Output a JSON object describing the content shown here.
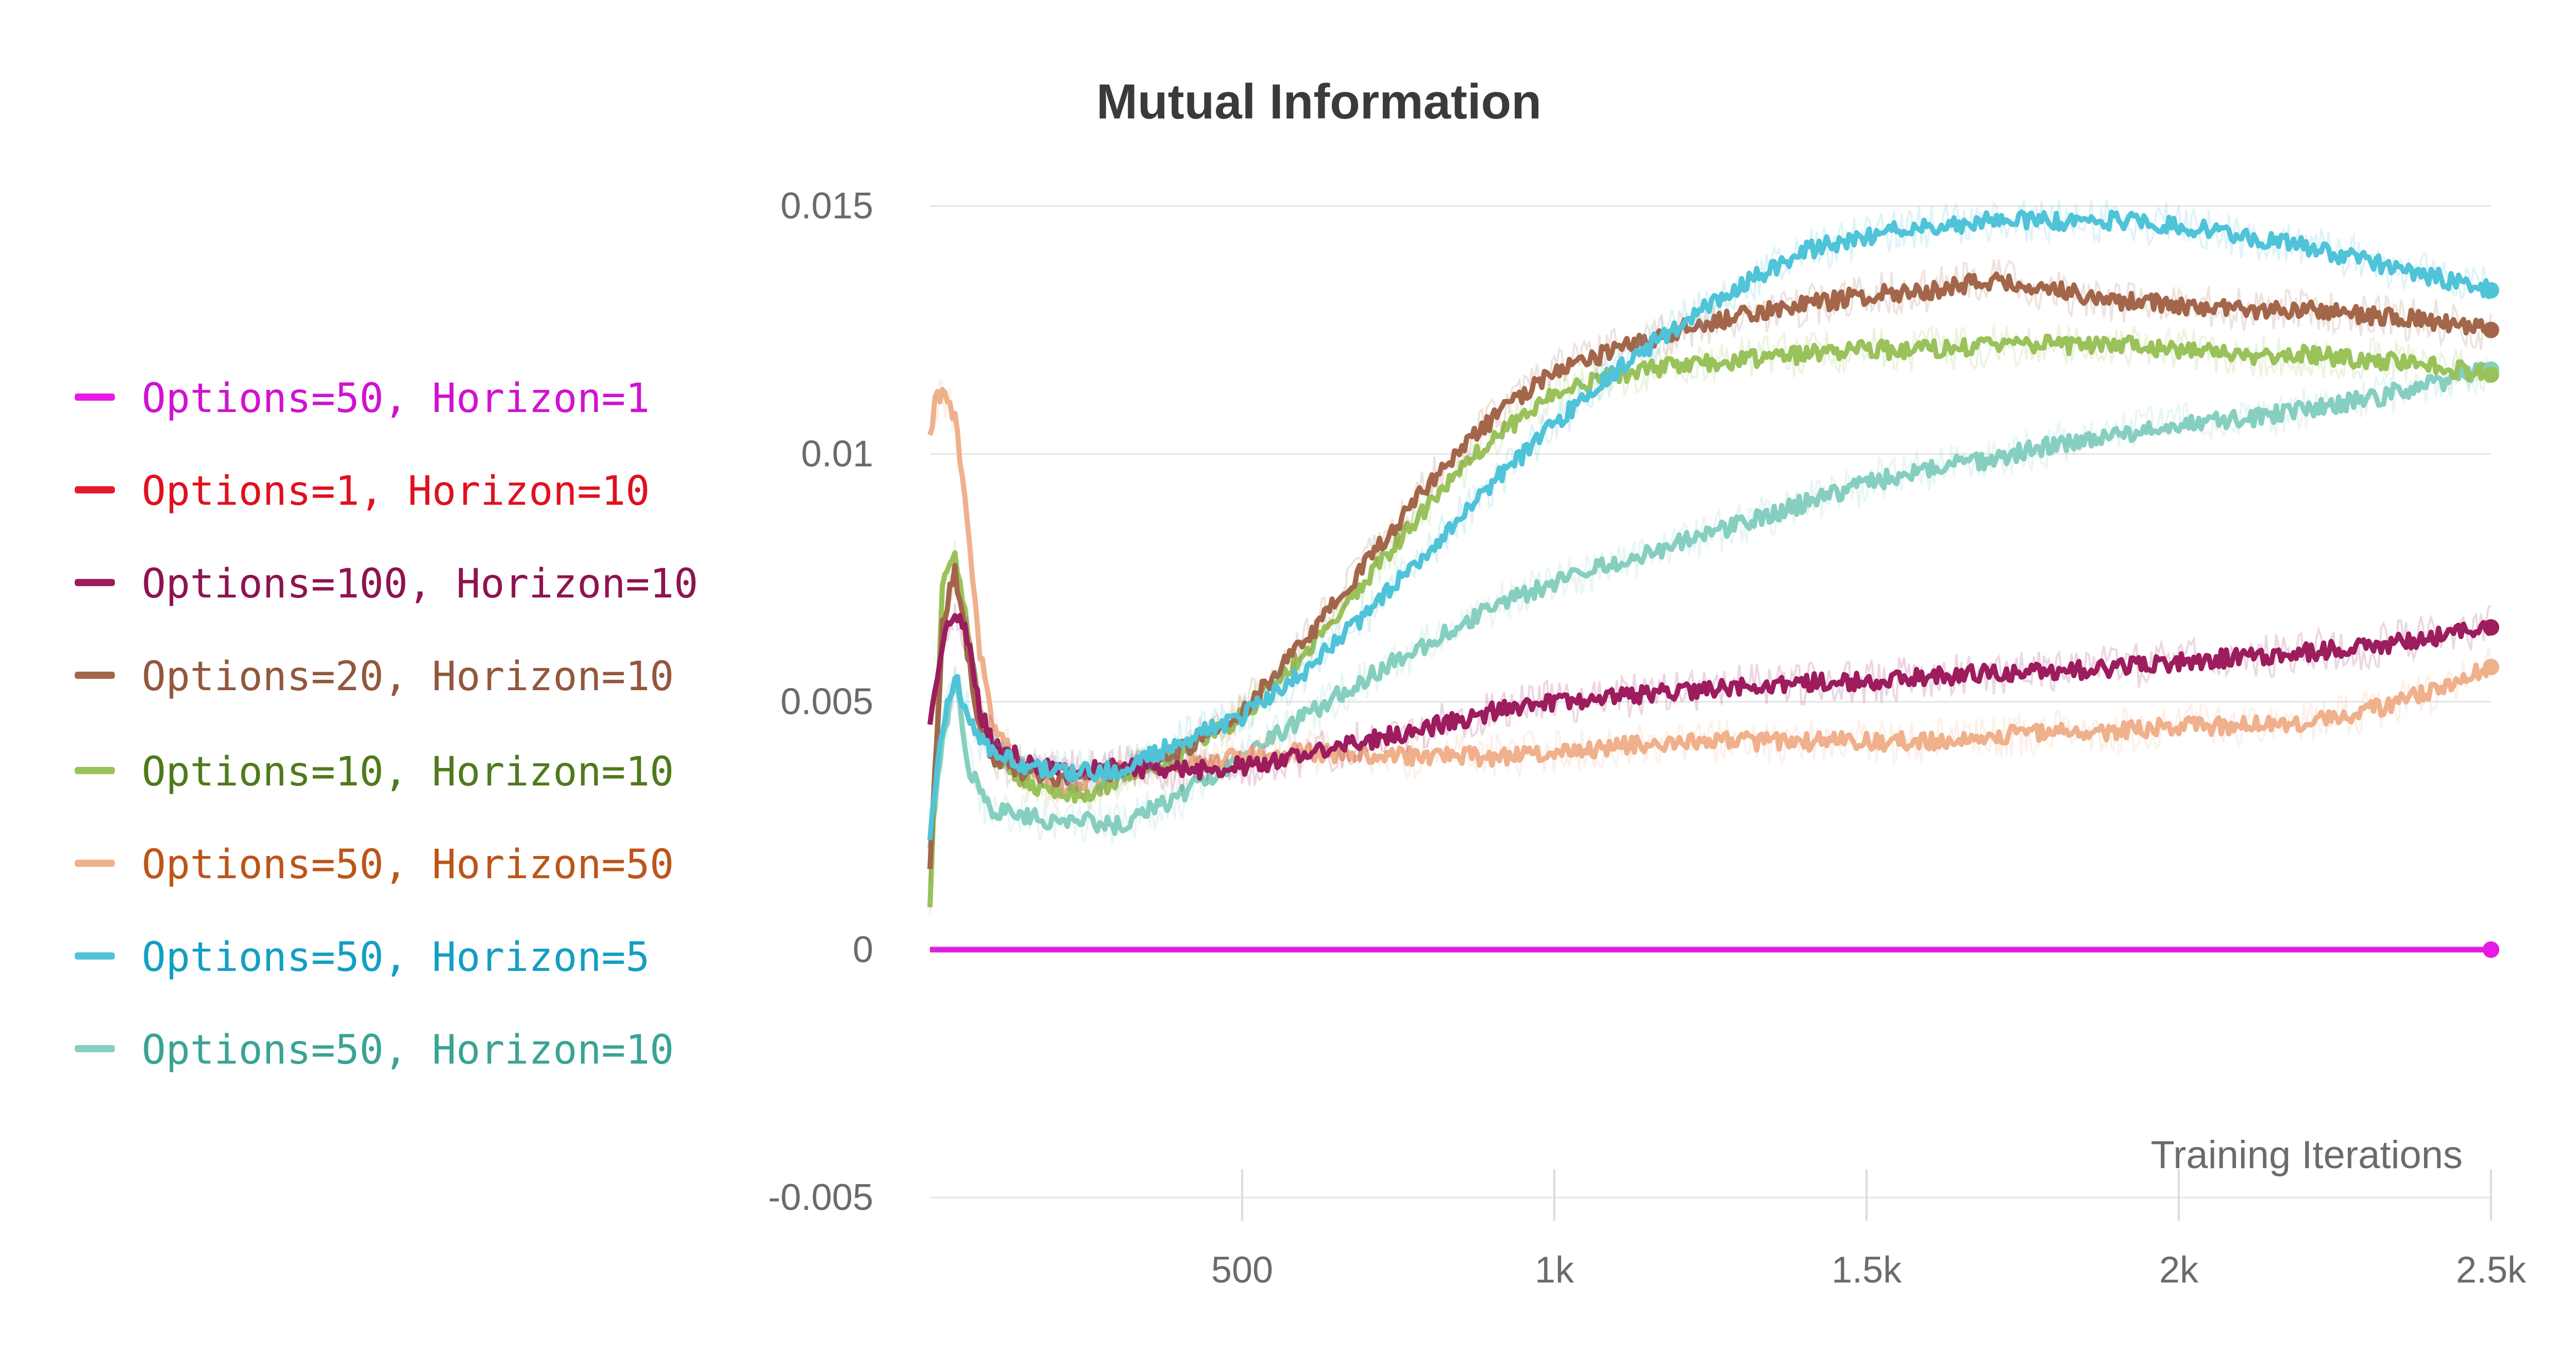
{
  "chart_data": {
    "type": "line",
    "title": "Mutual Information",
    "xlabel": "Training Iterations",
    "ylabel": "",
    "xlim": [
      0,
      2500
    ],
    "ylim": [
      -0.005,
      0.015
    ],
    "x_ticks": [
      500,
      1000,
      1500,
      2000,
      2500
    ],
    "x_tick_labels": [
      "500",
      "1k",
      "1.5k",
      "2k",
      "2.5k"
    ],
    "y_ticks": [
      -0.005,
      0,
      0.005,
      0.01,
      0.015
    ],
    "y_tick_labels": [
      "-0.005",
      "0",
      "0.005",
      "0.01",
      "0.015"
    ],
    "grid": true,
    "legend_position": "left",
    "series": [
      {
        "name": "Options=50, Horizon=1",
        "color": "#e619e6",
        "x": [
          0,
          2500
        ],
        "y": [
          0,
          0
        ]
      },
      {
        "name": "Options=1, Horizon=10",
        "color": "#e6192e",
        "x": [
          0,
          2500
        ],
        "y": [
          0,
          0
        ]
      },
      {
        "name": "Options=100, Horizon=10",
        "color": "#9c1c5e",
        "x": [
          0,
          20,
          40,
          60,
          80,
          100,
          150,
          200,
          250,
          300,
          400,
          500,
          600,
          700,
          800,
          900,
          1000,
          1100,
          1200,
          1300,
          1400,
          1500,
          1600,
          1700,
          1800,
          1900,
          2000,
          2100,
          2200,
          2300,
          2400,
          2500
        ],
        "y": [
          0.0047,
          0.0061,
          0.0069,
          0.0063,
          0.0048,
          0.0042,
          0.0038,
          0.0036,
          0.0036,
          0.0037,
          0.0036,
          0.0037,
          0.0039,
          0.0042,
          0.0045,
          0.0048,
          0.005,
          0.0051,
          0.0052,
          0.0053,
          0.0054,
          0.0054,
          0.0055,
          0.0056,
          0.0056,
          0.0057,
          0.0058,
          0.0059,
          0.006,
          0.0061,
          0.0063,
          0.0065
        ]
      },
      {
        "name": "Options=20, Horizon=10",
        "color": "#a3664a",
        "x": [
          0,
          20,
          40,
          60,
          80,
          100,
          150,
          200,
          250,
          300,
          400,
          500,
          600,
          700,
          800,
          900,
          1000,
          1100,
          1200,
          1300,
          1400,
          1500,
          1600,
          1700,
          1800,
          1900,
          2000,
          2100,
          2200,
          2300,
          2400,
          2500
        ],
        "y": [
          0.0015,
          0.0065,
          0.0077,
          0.006,
          0.0045,
          0.0039,
          0.0036,
          0.0035,
          0.0035,
          0.0036,
          0.004,
          0.0048,
          0.0062,
          0.0078,
          0.0094,
          0.0107,
          0.0117,
          0.0121,
          0.0125,
          0.0128,
          0.013,
          0.0132,
          0.0133,
          0.0135,
          0.0133,
          0.0131,
          0.013,
          0.0129,
          0.0129,
          0.0128,
          0.0127,
          0.0125
        ]
      },
      {
        "name": "Options=10, Horizon=10",
        "color": "#99c25a",
        "x": [
          0,
          20,
          40,
          60,
          80,
          100,
          150,
          200,
          250,
          300,
          400,
          500,
          600,
          700,
          800,
          900,
          1000,
          1100,
          1200,
          1300,
          1400,
          1500,
          1600,
          1700,
          1800,
          1900,
          2000,
          2100,
          2200,
          2300,
          2400,
          2500
        ],
        "y": [
          0.0008,
          0.0074,
          0.0081,
          0.0065,
          0.0047,
          0.004,
          0.0034,
          0.0032,
          0.0031,
          0.0034,
          0.0039,
          0.0047,
          0.006,
          0.0075,
          0.009,
          0.0103,
          0.0112,
          0.0116,
          0.0118,
          0.0119,
          0.012,
          0.0121,
          0.0121,
          0.0122,
          0.0122,
          0.0122,
          0.0121,
          0.012,
          0.012,
          0.0119,
          0.0118,
          0.0116
        ]
      },
      {
        "name": "Options=50, Horizon=50",
        "color": "#f0b08c",
        "x": [
          0,
          10,
          20,
          40,
          60,
          80,
          100,
          150,
          200,
          250,
          300,
          400,
          500,
          600,
          700,
          800,
          900,
          1000,
          1100,
          1200,
          1300,
          1400,
          1500,
          1600,
          1700,
          1800,
          1900,
          2000,
          2100,
          2200,
          2300,
          2400,
          2500
        ],
        "y": [
          0.0104,
          0.0111,
          0.0112,
          0.0107,
          0.0087,
          0.006,
          0.0045,
          0.0037,
          0.0033,
          0.0034,
          0.0036,
          0.0037,
          0.0039,
          0.004,
          0.0039,
          0.0039,
          0.0039,
          0.004,
          0.0041,
          0.0042,
          0.0042,
          0.0042,
          0.0042,
          0.0042,
          0.0043,
          0.0044,
          0.0044,
          0.0045,
          0.0045,
          0.0046,
          0.0048,
          0.0052,
          0.0057
        ]
      },
      {
        "name": "Options=50, Horizon=5",
        "color": "#4fc3d8",
        "x": [
          0,
          20,
          40,
          60,
          80,
          100,
          150,
          200,
          250,
          300,
          400,
          500,
          600,
          700,
          800,
          900,
          1000,
          1100,
          1200,
          1300,
          1400,
          1500,
          1600,
          1700,
          1800,
          1900,
          2000,
          2100,
          2200,
          2300,
          2400,
          2500
        ],
        "y": [
          0.0023,
          0.0045,
          0.0055,
          0.0048,
          0.0042,
          0.004,
          0.0037,
          0.0036,
          0.0036,
          0.0036,
          0.0042,
          0.0047,
          0.0056,
          0.0068,
          0.0081,
          0.0094,
          0.0106,
          0.0117,
          0.0126,
          0.0134,
          0.0141,
          0.0144,
          0.0146,
          0.0147,
          0.0147,
          0.0147,
          0.0146,
          0.0144,
          0.0142,
          0.0139,
          0.0136,
          0.0133
        ]
      },
      {
        "name": "Options=50, Horizon=10",
        "color": "#86cfc0",
        "x": [
          0,
          20,
          40,
          60,
          80,
          100,
          150,
          200,
          250,
          300,
          400,
          500,
          600,
          700,
          800,
          900,
          1000,
          1100,
          1200,
          1300,
          1400,
          1500,
          1600,
          1700,
          1800,
          1900,
          2000,
          2100,
          2200,
          2300,
          2400,
          2500
        ],
        "y": [
          0.0022,
          0.0042,
          0.0055,
          0.0038,
          0.0031,
          0.0028,
          0.0027,
          0.0026,
          0.0026,
          0.0025,
          0.0031,
          0.0039,
          0.0047,
          0.0055,
          0.0062,
          0.0069,
          0.0074,
          0.0078,
          0.0082,
          0.0086,
          0.009,
          0.0094,
          0.0097,
          0.0099,
          0.0102,
          0.0104,
          0.0106,
          0.0107,
          0.0109,
          0.0111,
          0.0114,
          0.0117
        ]
      }
    ]
  }
}
